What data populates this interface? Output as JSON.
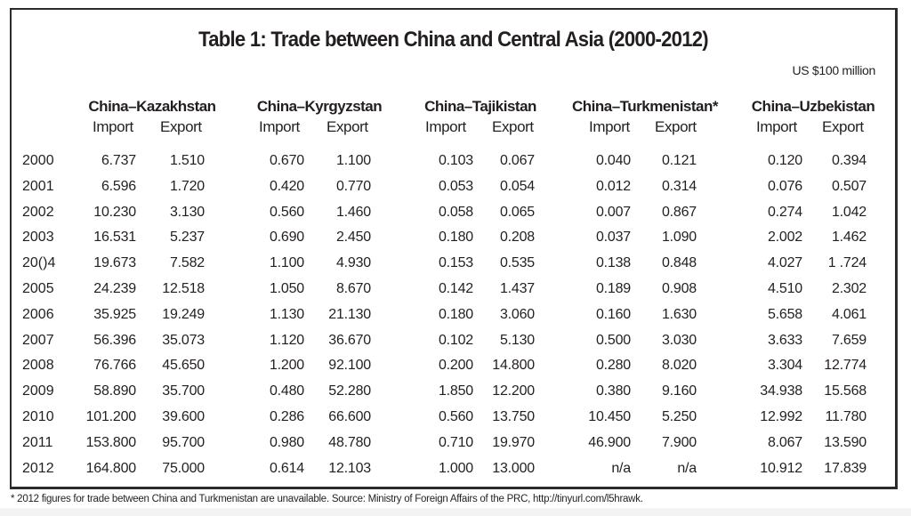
{
  "table": {
    "title": "Table 1: Trade between China and Central Asia (2000-2012)",
    "units": "US $100 million",
    "groups": [
      {
        "name": "China–Kazakhstan",
        "import_label": "Import",
        "export_label": "Export"
      },
      {
        "name": "China–Kyrgyzstan",
        "import_label": "Import",
        "export_label": "Export"
      },
      {
        "name": "China–Tajikistan",
        "import_label": "Import",
        "export_label": "Export"
      },
      {
        "name": "China–Turkmenistan*",
        "import_label": "Import",
        "export_label": "Export"
      },
      {
        "name": "China–Uzbekistan",
        "import_label": "Import",
        "export_label": "Export"
      }
    ],
    "rows": [
      {
        "year": "2000",
        "values": [
          "6.737",
          "1.510",
          "0.670",
          "1.100",
          "0.103",
          "0.067",
          "0.040",
          "0.121",
          "0.120",
          "0.394"
        ]
      },
      {
        "year": "2001",
        "values": [
          "6.596",
          "1.720",
          "0.420",
          "0.770",
          "0.053",
          "0.054",
          "0.012",
          "0.314",
          "0.076",
          "0.507"
        ]
      },
      {
        "year": "2002",
        "values": [
          "10.230",
          "3.130",
          "0.560",
          "1.460",
          "0.058",
          "0.065",
          "0.007",
          "0.867",
          "0.274",
          "1.042"
        ]
      },
      {
        "year": "2003",
        "values": [
          "16.531",
          "5.237",
          "0.690",
          "2.450",
          "0.180",
          "0.208",
          "0.037",
          "1.090",
          "2.002",
          "1.462"
        ]
      },
      {
        "year": "20()4",
        "values": [
          "19.673",
          "7.582",
          "1.100",
          "4.930",
          "0.153",
          "0.535",
          "0.138",
          "0.848",
          "4.027",
          "1 .724"
        ]
      },
      {
        "year": "2005",
        "values": [
          "24.239",
          "12.518",
          "1.050",
          "8.670",
          "0.142",
          "1.437",
          "0.189",
          "0.908",
          "4.510",
          "2.302"
        ]
      },
      {
        "year": "2006",
        "values": [
          "35.925",
          "19.249",
          "1.130",
          "21.130",
          "0.180",
          "3.060",
          "0.160",
          "1.630",
          "5.658",
          "4.061"
        ]
      },
      {
        "year": "2007",
        "values": [
          "56.396",
          "35.073",
          "1.120",
          "36.670",
          "0.102",
          "5.130",
          "0.500",
          "3.030",
          "3.633",
          "7.659"
        ]
      },
      {
        "year": "2008",
        "values": [
          "76.766",
          "45.650",
          "1.200",
          "92.100",
          "0.200",
          "14.800",
          "0.280",
          "8.020",
          "3.304",
          "12.774"
        ]
      },
      {
        "year": "2009",
        "values": [
          "58.890",
          "35.700",
          "0.480",
          "52.280",
          "1.850",
          "12.200",
          "0.380",
          "9.160",
          "34.938",
          "15.568"
        ]
      },
      {
        "year": "2010",
        "values": [
          "101.200",
          "39.600",
          "0.286",
          "66.600",
          "0.560",
          "13.750",
          "10.450",
          "5.250",
          "12.992",
          "11.780"
        ]
      },
      {
        "year": "2011",
        "values": [
          "153.800",
          "95.700",
          "0.980",
          "48.780",
          "0.710",
          "19.970",
          "46.900",
          "7.900",
          "8.067",
          "13.590"
        ]
      },
      {
        "year": "2012",
        "values": [
          "164.800",
          "75.000",
          "0.614",
          "12.103",
          "1.000",
          "13.000",
          "n/a",
          "n/a",
          "10.912",
          "17.839"
        ]
      }
    ]
  },
  "footnote": "* 2012 figures for trade between China and Turkmenistan are unavailable. Source: Ministry of Foreign Affairs of the PRC, http://tinyurl.com/l5hrawk."
}
